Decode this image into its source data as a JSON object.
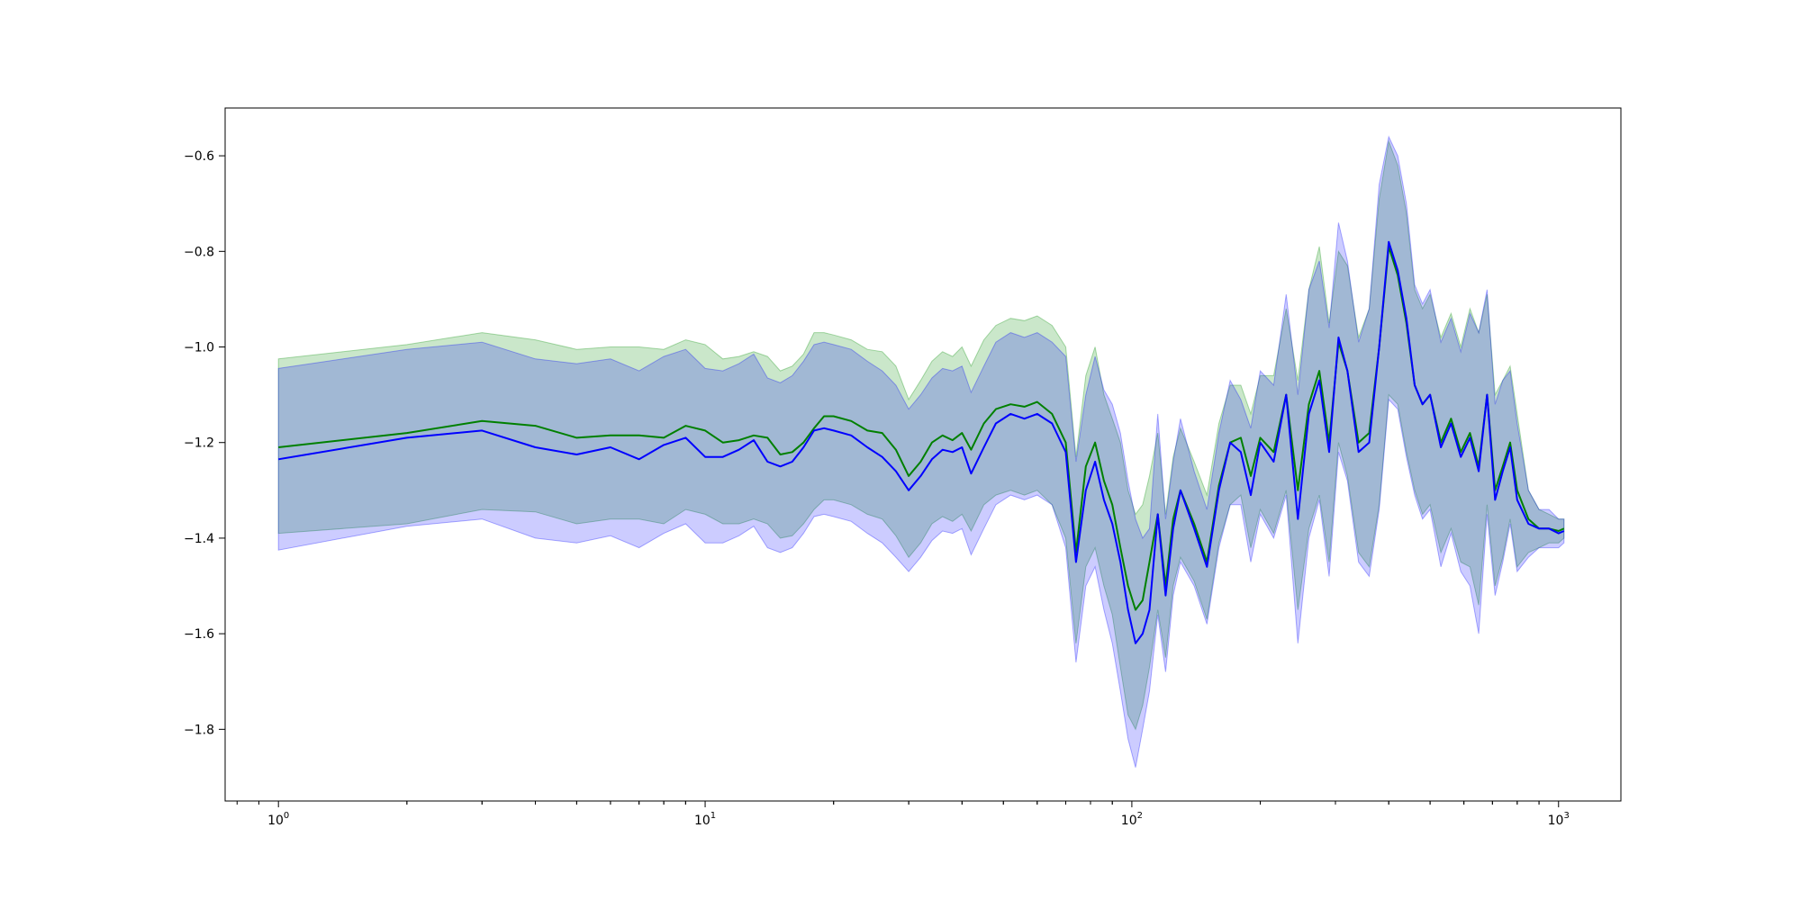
{
  "chart_data": {
    "type": "line",
    "title": "",
    "xlabel": "",
    "ylabel": "",
    "xscale": "log",
    "xlim": [
      0.75,
      1400
    ],
    "ylim": [
      -1.95,
      -0.5
    ],
    "grid": false,
    "legend": "none",
    "x_ticks": [
      {
        "base": "10",
        "exp": "0",
        "value": 1
      },
      {
        "base": "10",
        "exp": "1",
        "value": 10
      },
      {
        "base": "10",
        "exp": "2",
        "value": 100
      },
      {
        "base": "10",
        "exp": "3",
        "value": 1000
      }
    ],
    "y_ticks": [
      {
        "label": "−0.6",
        "value": -0.6
      },
      {
        "label": "−0.8",
        "value": -0.8
      },
      {
        "label": "−1.0",
        "value": -1.0
      },
      {
        "label": "−1.2",
        "value": -1.2
      },
      {
        "label": "−1.4",
        "value": -1.4
      },
      {
        "label": "−1.6",
        "value": -1.6
      },
      {
        "label": "−1.8",
        "value": -1.8
      }
    ],
    "series": [
      {
        "color": "#008000",
        "band_color": "#2ca02c",
        "band_opacity": 0.25,
        "x": [
          1,
          2,
          3,
          4,
          5,
          6,
          7,
          8,
          9,
          10,
          11,
          12,
          13,
          14,
          15,
          16,
          17,
          18,
          19,
          20,
          22,
          24,
          26,
          28,
          30,
          32,
          34,
          36,
          38,
          40,
          42,
          45,
          48,
          52,
          56,
          60,
          65,
          70,
          74,
          78,
          82,
          86,
          90,
          94,
          98,
          102,
          106,
          110,
          115,
          120,
          125,
          130,
          140,
          150,
          160,
          170,
          180,
          190,
          200,
          215,
          230,
          245,
          260,
          275,
          290,
          305,
          320,
          340,
          360,
          380,
          400,
          420,
          440,
          460,
          480,
          500,
          530,
          560,
          590,
          620,
          650,
          680,
          710,
          740,
          770,
          800,
          850,
          900,
          950,
          1000,
          1030
        ],
        "values": [
          -1.21,
          -1.18,
          -1.155,
          -1.165,
          -1.19,
          -1.185,
          -1.185,
          -1.19,
          -1.165,
          -1.175,
          -1.2,
          -1.195,
          -1.185,
          -1.19,
          -1.225,
          -1.22,
          -1.2,
          -1.17,
          -1.145,
          -1.145,
          -1.155,
          -1.175,
          -1.18,
          -1.215,
          -1.27,
          -1.24,
          -1.2,
          -1.185,
          -1.195,
          -1.18,
          -1.215,
          -1.16,
          -1.13,
          -1.12,
          -1.125,
          -1.115,
          -1.14,
          -1.2,
          -1.43,
          -1.25,
          -1.2,
          -1.28,
          -1.33,
          -1.42,
          -1.5,
          -1.55,
          -1.53,
          -1.45,
          -1.35,
          -1.5,
          -1.36,
          -1.3,
          -1.37,
          -1.45,
          -1.29,
          -1.2,
          -1.19,
          -1.27,
          -1.19,
          -1.22,
          -1.1,
          -1.3,
          -1.12,
          -1.05,
          -1.2,
          -0.99,
          -1.05,
          -1.2,
          -1.18,
          -1.0,
          -0.79,
          -0.85,
          -0.95,
          -1.08,
          -1.12,
          -1.1,
          -1.2,
          -1.15,
          -1.22,
          -1.18,
          -1.25,
          -1.1,
          -1.3,
          -1.25,
          -1.2,
          -1.3,
          -1.36,
          -1.38,
          -1.38,
          -1.385,
          -1.38
        ],
        "lower": [
          -1.39,
          -1.37,
          -1.34,
          -1.345,
          -1.37,
          -1.36,
          -1.36,
          -1.37,
          -1.34,
          -1.35,
          -1.37,
          -1.37,
          -1.36,
          -1.37,
          -1.4,
          -1.395,
          -1.37,
          -1.34,
          -1.32,
          -1.32,
          -1.33,
          -1.35,
          -1.36,
          -1.395,
          -1.44,
          -1.41,
          -1.37,
          -1.355,
          -1.365,
          -1.35,
          -1.385,
          -1.33,
          -1.31,
          -1.3,
          -1.31,
          -1.3,
          -1.33,
          -1.4,
          -1.62,
          -1.46,
          -1.42,
          -1.5,
          -1.56,
          -1.67,
          -1.77,
          -1.8,
          -1.75,
          -1.67,
          -1.55,
          -1.65,
          -1.5,
          -1.44,
          -1.49,
          -1.57,
          -1.41,
          -1.33,
          -1.31,
          -1.42,
          -1.34,
          -1.39,
          -1.3,
          -1.55,
          -1.38,
          -1.31,
          -1.45,
          -1.2,
          -1.27,
          -1.43,
          -1.46,
          -1.33,
          -1.1,
          -1.12,
          -1.22,
          -1.3,
          -1.35,
          -1.33,
          -1.43,
          -1.38,
          -1.45,
          -1.46,
          -1.54,
          -1.33,
          -1.5,
          -1.44,
          -1.36,
          -1.46,
          -1.43,
          -1.42,
          -1.41,
          -1.41,
          -1.4
        ],
        "upper": [
          -1.025,
          -0.995,
          -0.97,
          -0.985,
          -1.005,
          -1.0,
          -1.0,
          -1.005,
          -0.985,
          -0.995,
          -1.025,
          -1.02,
          -1.01,
          -1.02,
          -1.05,
          -1.04,
          -1.015,
          -0.97,
          -0.97,
          -0.975,
          -0.985,
          -1.005,
          -1.01,
          -1.04,
          -1.11,
          -1.07,
          -1.03,
          -1.01,
          -1.02,
          -1.0,
          -1.04,
          -0.985,
          -0.955,
          -0.94,
          -0.945,
          -0.935,
          -0.955,
          -1.0,
          -1.23,
          -1.06,
          -1.0,
          -1.1,
          -1.15,
          -1.2,
          -1.3,
          -1.35,
          -1.33,
          -1.27,
          -1.18,
          -1.35,
          -1.23,
          -1.17,
          -1.24,
          -1.31,
          -1.16,
          -1.08,
          -1.08,
          -1.14,
          -1.06,
          -1.06,
          -0.92,
          -1.07,
          -0.88,
          -0.79,
          -0.95,
          -0.8,
          -0.83,
          -0.98,
          -0.92,
          -0.69,
          -0.57,
          -0.62,
          -0.72,
          -0.88,
          -0.92,
          -0.89,
          -0.98,
          -0.93,
          -1.0,
          -0.92,
          -0.97,
          -0.89,
          -1.1,
          -1.07,
          -1.04,
          -1.14,
          -1.3,
          -1.34,
          -1.35,
          -1.36,
          -1.36
        ]
      },
      {
        "color": "#0000ff",
        "band_color": "#0000ff",
        "band_opacity": 0.2,
        "x": [
          1,
          2,
          3,
          4,
          5,
          6,
          7,
          8,
          9,
          10,
          11,
          12,
          13,
          14,
          15,
          16,
          17,
          18,
          19,
          20,
          22,
          24,
          26,
          28,
          30,
          32,
          34,
          36,
          38,
          40,
          42,
          45,
          48,
          52,
          56,
          60,
          65,
          70,
          74,
          78,
          82,
          86,
          90,
          94,
          98,
          102,
          106,
          110,
          115,
          120,
          125,
          130,
          140,
          150,
          160,
          170,
          180,
          190,
          200,
          215,
          230,
          245,
          260,
          275,
          290,
          305,
          320,
          340,
          360,
          380,
          400,
          420,
          440,
          460,
          480,
          500,
          530,
          560,
          590,
          620,
          650,
          680,
          710,
          740,
          770,
          800,
          850,
          900,
          950,
          1000,
          1030
        ],
        "values": [
          -1.235,
          -1.19,
          -1.175,
          -1.21,
          -1.225,
          -1.21,
          -1.235,
          -1.205,
          -1.19,
          -1.23,
          -1.23,
          -1.215,
          -1.195,
          -1.24,
          -1.25,
          -1.24,
          -1.21,
          -1.175,
          -1.17,
          -1.175,
          -1.185,
          -1.21,
          -1.23,
          -1.26,
          -1.3,
          -1.27,
          -1.235,
          -1.215,
          -1.22,
          -1.21,
          -1.265,
          -1.21,
          -1.16,
          -1.14,
          -1.15,
          -1.14,
          -1.16,
          -1.22,
          -1.45,
          -1.3,
          -1.24,
          -1.32,
          -1.37,
          -1.45,
          -1.55,
          -1.62,
          -1.6,
          -1.55,
          -1.35,
          -1.52,
          -1.38,
          -1.3,
          -1.38,
          -1.46,
          -1.3,
          -1.2,
          -1.22,
          -1.31,
          -1.2,
          -1.24,
          -1.1,
          -1.36,
          -1.14,
          -1.07,
          -1.22,
          -0.98,
          -1.05,
          -1.22,
          -1.2,
          -1.0,
          -0.78,
          -0.84,
          -0.94,
          -1.08,
          -1.12,
          -1.1,
          -1.21,
          -1.16,
          -1.23,
          -1.19,
          -1.26,
          -1.1,
          -1.32,
          -1.26,
          -1.21,
          -1.32,
          -1.37,
          -1.38,
          -1.38,
          -1.39,
          -1.385
        ],
        "lower": [
          -1.425,
          -1.375,
          -1.36,
          -1.4,
          -1.41,
          -1.395,
          -1.42,
          -1.39,
          -1.37,
          -1.41,
          -1.41,
          -1.395,
          -1.375,
          -1.42,
          -1.43,
          -1.42,
          -1.39,
          -1.355,
          -1.35,
          -1.355,
          -1.365,
          -1.39,
          -1.41,
          -1.44,
          -1.47,
          -1.44,
          -1.405,
          -1.385,
          -1.39,
          -1.38,
          -1.435,
          -1.38,
          -1.33,
          -1.31,
          -1.32,
          -1.31,
          -1.33,
          -1.42,
          -1.66,
          -1.5,
          -1.46,
          -1.55,
          -1.62,
          -1.72,
          -1.82,
          -1.88,
          -1.8,
          -1.72,
          -1.56,
          -1.68,
          -1.52,
          -1.45,
          -1.5,
          -1.58,
          -1.42,
          -1.33,
          -1.33,
          -1.45,
          -1.35,
          -1.4,
          -1.31,
          -1.62,
          -1.4,
          -1.32,
          -1.48,
          -1.22,
          -1.28,
          -1.45,
          -1.48,
          -1.34,
          -1.11,
          -1.13,
          -1.23,
          -1.31,
          -1.36,
          -1.34,
          -1.46,
          -1.39,
          -1.47,
          -1.5,
          -1.6,
          -1.35,
          -1.52,
          -1.45,
          -1.37,
          -1.47,
          -1.44,
          -1.42,
          -1.42,
          -1.42,
          -1.41
        ],
        "upper": [
          -1.045,
          -1.005,
          -0.99,
          -1.025,
          -1.035,
          -1.025,
          -1.05,
          -1.02,
          -1.005,
          -1.045,
          -1.05,
          -1.035,
          -1.015,
          -1.065,
          -1.075,
          -1.06,
          -1.03,
          -0.995,
          -0.99,
          -0.995,
          -1.005,
          -1.03,
          -1.05,
          -1.08,
          -1.13,
          -1.1,
          -1.065,
          -1.045,
          -1.05,
          -1.04,
          -1.095,
          -1.04,
          -0.99,
          -0.97,
          -0.98,
          -0.97,
          -0.99,
          -1.02,
          -1.24,
          -1.1,
          -1.02,
          -1.09,
          -1.12,
          -1.18,
          -1.28,
          -1.36,
          -1.4,
          -1.38,
          -1.14,
          -1.36,
          -1.24,
          -1.15,
          -1.26,
          -1.34,
          -1.18,
          -1.07,
          -1.11,
          -1.17,
          -1.05,
          -1.08,
          -0.89,
          -1.1,
          -0.88,
          -0.82,
          -0.96,
          -0.74,
          -0.82,
          -0.99,
          -0.92,
          -0.66,
          -0.56,
          -0.6,
          -0.7,
          -0.87,
          -0.91,
          -0.88,
          -0.99,
          -0.94,
          -1.01,
          -0.93,
          -0.97,
          -0.88,
          -1.12,
          -1.07,
          -1.05,
          -1.16,
          -1.3,
          -1.34,
          -1.34,
          -1.36,
          -1.36
        ]
      }
    ]
  }
}
